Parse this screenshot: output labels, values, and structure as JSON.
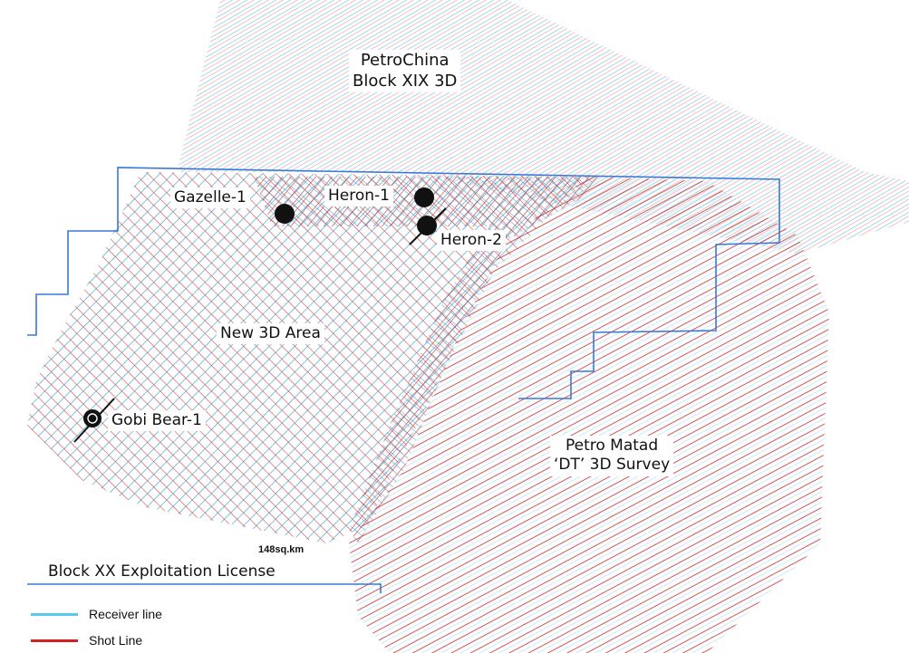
{
  "labels": {
    "petrochina_line1": "PetroChina",
    "petrochina_line2": "Block XIX 3D",
    "gazelle": "Gazelle-1",
    "heron1": "Heron-1",
    "heron2": "Heron-2",
    "new3d": "New 3D Area",
    "gobi": "Gobi Bear-1",
    "petromatad_line1": "Petro Matad",
    "petromatad_line2": "‘DT’  3D Survey",
    "area": "148sq.km",
    "license": "Block XX Exploitation License"
  },
  "legend": [
    {
      "label": "Receiver line",
      "color": "#5bc8f0"
    },
    {
      "label": "Shot Line",
      "color": "#d42020"
    }
  ],
  "colors": {
    "receiver": "#5bc8f0",
    "shot": "#d42020",
    "license_boundary": "#3a78d8",
    "well": "#111111"
  }
}
